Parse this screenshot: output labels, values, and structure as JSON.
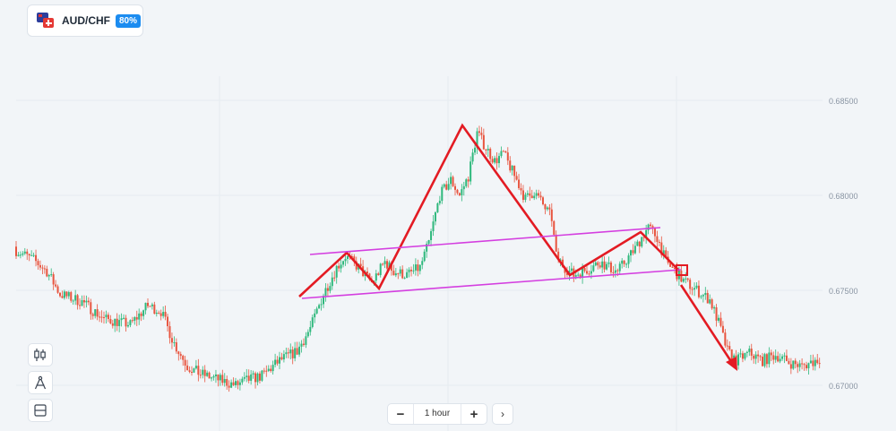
{
  "asset": {
    "name": "AUD/CHF",
    "payout": "80%",
    "icon": "aud-chf-flags-icon"
  },
  "toolbar": {
    "tools": [
      {
        "name": "candles-tool-button",
        "icon": "candlestick-icon"
      },
      {
        "name": "drawing-tool-button",
        "icon": "compass-icon"
      },
      {
        "name": "layout-tool-button",
        "icon": "split-window-icon"
      }
    ]
  },
  "timeframe": {
    "minus": "−",
    "label": "1 hour",
    "plus": "+",
    "next": "›"
  },
  "colors": {
    "up": "#2eb87c",
    "down": "#e8553f",
    "pattern": "#e31b23",
    "channel": "#d43fe0",
    "grid": "#e6ebf0"
  },
  "chart_data": {
    "type": "candlestick",
    "symbol": "AUD/CHF",
    "timeframe": "1 hour",
    "y_ticks": [
      "0.68500",
      "0.68000",
      "0.67500",
      "0.67000"
    ],
    "ylim": [
      0.669,
      0.6875
    ],
    "close_path": [
      [
        0,
        0.6771
      ],
      [
        8,
        0.6766
      ],
      [
        14,
        0.676
      ],
      [
        20,
        0.6748
      ],
      [
        30,
        0.6744
      ],
      [
        40,
        0.6735
      ],
      [
        52,
        0.6732
      ],
      [
        60,
        0.6742
      ],
      [
        66,
        0.6739
      ],
      [
        72,
        0.6722
      ],
      [
        78,
        0.671
      ],
      [
        84,
        0.6706
      ],
      [
        92,
        0.6703
      ],
      [
        100,
        0.67
      ],
      [
        106,
        0.6703
      ],
      [
        112,
        0.6705
      ],
      [
        120,
        0.6713
      ],
      [
        128,
        0.6718
      ],
      [
        134,
        0.673
      ],
      [
        140,
        0.6748
      ],
      [
        146,
        0.6762
      ],
      [
        150,
        0.6768
      ],
      [
        156,
        0.6762
      ],
      [
        162,
        0.6754
      ],
      [
        168,
        0.6765
      ],
      [
        172,
        0.676
      ],
      [
        178,
        0.6758
      ],
      [
        184,
        0.6762
      ],
      [
        188,
        0.6775
      ],
      [
        193,
        0.68
      ],
      [
        198,
        0.6808
      ],
      [
        202,
        0.68
      ],
      [
        206,
        0.681
      ],
      [
        210,
        0.6833
      ],
      [
        214,
        0.6825
      ],
      [
        218,
        0.6818
      ],
      [
        222,
        0.6822
      ],
      [
        228,
        0.6808
      ],
      [
        232,
        0.6798
      ],
      [
        236,
        0.6802
      ],
      [
        240,
        0.6795
      ],
      [
        244,
        0.6788
      ],
      [
        246,
        0.6768
      ],
      [
        250,
        0.6762
      ],
      [
        254,
        0.6758
      ],
      [
        258,
        0.676
      ],
      [
        262,
        0.6762
      ],
      [
        266,
        0.6765
      ],
      [
        270,
        0.6762
      ],
      [
        274,
        0.676
      ],
      [
        278,
        0.6766
      ],
      [
        282,
        0.6772
      ],
      [
        286,
        0.678
      ],
      [
        288,
        0.6783
      ],
      [
        292,
        0.6778
      ],
      [
        296,
        0.6765
      ],
      [
        300,
        0.676
      ],
      [
        304,
        0.6755
      ],
      [
        310,
        0.675
      ],
      [
        316,
        0.6745
      ],
      [
        320,
        0.6733
      ],
      [
        324,
        0.6718
      ],
      [
        328,
        0.6713
      ],
      [
        334,
        0.6717
      ],
      [
        340,
        0.6713
      ],
      [
        346,
        0.6716
      ],
      [
        352,
        0.6712
      ],
      [
        358,
        0.671
      ],
      [
        364,
        0.6713
      ],
      [
        366,
        0.6714
      ]
    ],
    "annotations": [
      "head-and-shoulders pattern",
      "neckline channel",
      "breakout marker",
      "bearish arrow"
    ]
  }
}
